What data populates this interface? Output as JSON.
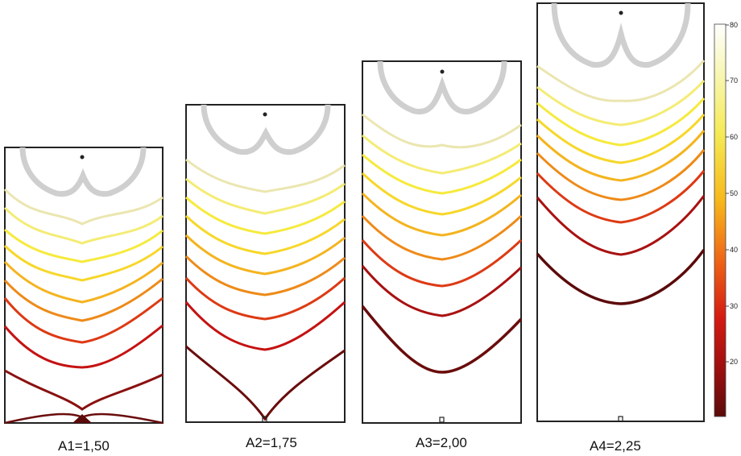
{
  "panels": [
    {
      "label": "A1=1,50",
      "contour_count": 11
    },
    {
      "label": "A2=1,75",
      "contour_count": 10
    },
    {
      "label": "A3=2,00",
      "contour_count": 10
    },
    {
      "label": "A4=2,25",
      "contour_count": 10
    }
  ],
  "colorbar": {
    "ticks": [
      "20",
      "30",
      "40",
      "50",
      "60",
      "70",
      "80"
    ],
    "min": 12,
    "max": 80,
    "colormap": [
      "#5c0a0a",
      "#c40f0f",
      "#ef5b16",
      "#f7c31b",
      "#f5f27a",
      "#fffef2"
    ]
  }
}
